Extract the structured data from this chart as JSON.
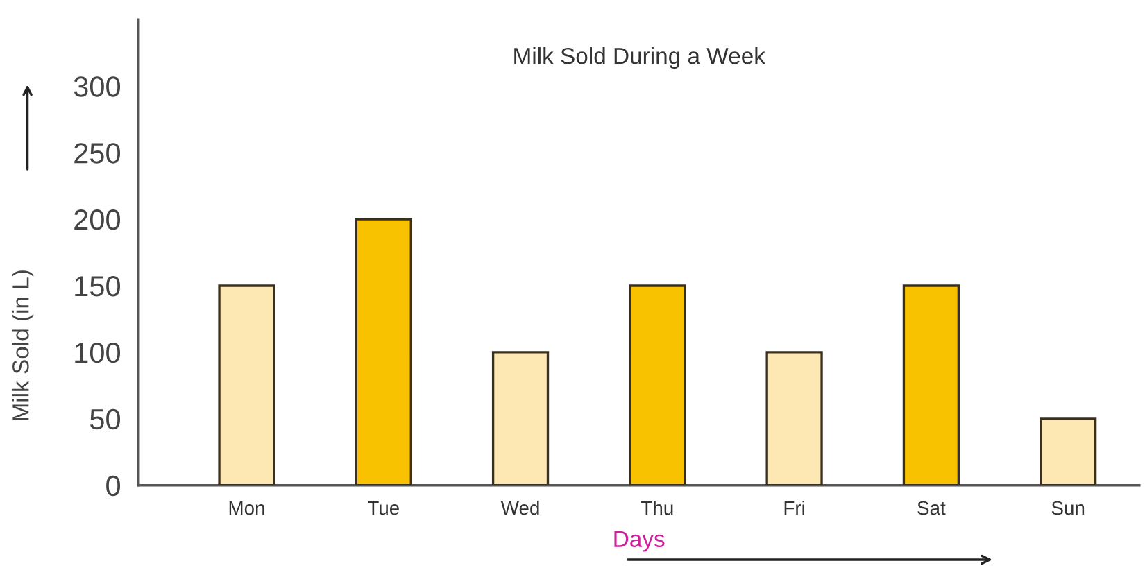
{
  "chart_data": {
    "type": "bar",
    "title": "Milk Sold During a Week",
    "xlabel": "Days",
    "ylabel": "Milk Sold (in L)",
    "categories": [
      "Mon",
      "Tue",
      "Wed",
      "Thu",
      "Fri",
      "Sat",
      "Sun"
    ],
    "values": [
      150,
      200,
      100,
      150,
      100,
      150,
      50
    ],
    "colors": [
      "#fde8b4",
      "#f9c200",
      "#fde8b4",
      "#f9c200",
      "#fde8b4",
      "#f9c200",
      "#fde8b4"
    ],
    "ylim": [
      0,
      350
    ],
    "yticks": [
      0,
      50,
      100,
      150,
      200,
      250,
      300
    ],
    "grid": false
  }
}
